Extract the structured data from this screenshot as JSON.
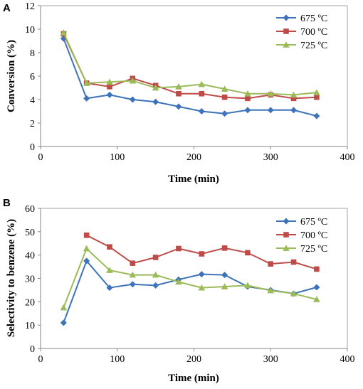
{
  "figure": {
    "panels": [
      {
        "letter": "A",
        "xlabel": "Time (min)",
        "ylabel": "Conversion (%)"
      },
      {
        "letter": "B",
        "xlabel": "Time (min)",
        "ylabel": "Selectivity to benzene (%)"
      }
    ]
  },
  "chart_data": [
    {
      "type": "line",
      "panel": "A",
      "title": "",
      "xlabel": "Time (min)",
      "ylabel": "Conversion (%)",
      "xlim": [
        0,
        400
      ],
      "ylim": [
        0,
        12
      ],
      "xticks": [
        0,
        100,
        200,
        300,
        400
      ],
      "yticks": [
        0,
        2,
        4,
        6,
        8,
        10,
        12
      ],
      "grid": false,
      "legend_position": "top-right",
      "x": [
        30,
        60,
        90,
        120,
        150,
        180,
        210,
        240,
        270,
        300,
        330,
        360
      ],
      "series": [
        {
          "name": "675 ºC",
          "color": "#3d73b9",
          "marker": "diamond",
          "values": [
            9.2,
            4.1,
            4.4,
            4.0,
            3.8,
            3.4,
            3.0,
            2.8,
            3.1,
            3.1,
            3.1,
            2.6
          ]
        },
        {
          "name": "700 ºC",
          "color": "#be4b48",
          "marker": "square",
          "values": [
            9.6,
            5.4,
            5.1,
            5.8,
            5.2,
            4.5,
            4.5,
            4.2,
            4.1,
            4.4,
            4.1,
            4.2
          ]
        },
        {
          "name": "725 ºC",
          "color": "#9bbb59",
          "marker": "triangle",
          "values": [
            9.7,
            5.4,
            5.5,
            5.6,
            5.0,
            5.1,
            5.3,
            4.9,
            4.5,
            4.5,
            4.4,
            4.6
          ]
        }
      ]
    },
    {
      "type": "line",
      "panel": "B",
      "title": "",
      "xlabel": "Time (min)",
      "ylabel": "Selectivity to benzene (%)",
      "xlim": [
        0,
        400
      ],
      "ylim": [
        0,
        60
      ],
      "xticks": [
        0,
        100,
        200,
        300,
        400
      ],
      "yticks": [
        0,
        10,
        20,
        30,
        40,
        50,
        60
      ],
      "grid": false,
      "legend_position": "top-right",
      "series": [
        {
          "name": "675 ºC",
          "color": "#3d73b9",
          "marker": "diamond",
          "x": [
            30,
            60,
            90,
            120,
            150,
            180,
            210,
            240,
            270,
            300,
            330,
            360
          ],
          "values": [
            11,
            37.5,
            26,
            27.5,
            27,
            29.5,
            31.8,
            31.5,
            26.5,
            25,
            23.5,
            26.2
          ]
        },
        {
          "name": "700 ºC",
          "color": "#be4b48",
          "marker": "square",
          "x": [
            60,
            90,
            120,
            150,
            180,
            210,
            240,
            270,
            300,
            330,
            360
          ],
          "values": [
            48.5,
            43.5,
            36.5,
            39,
            42.8,
            40.5,
            43,
            41,
            36.2,
            37,
            34
          ]
        },
        {
          "name": "725 ºC",
          "color": "#9bbb59",
          "marker": "triangle",
          "x": [
            30,
            60,
            90,
            120,
            150,
            180,
            210,
            240,
            270,
            300,
            330,
            360
          ],
          "values": [
            17.5,
            42.8,
            33.5,
            31.5,
            31.5,
            28.5,
            26,
            26.5,
            27,
            24.8,
            23.5,
            21
          ]
        }
      ]
    }
  ]
}
